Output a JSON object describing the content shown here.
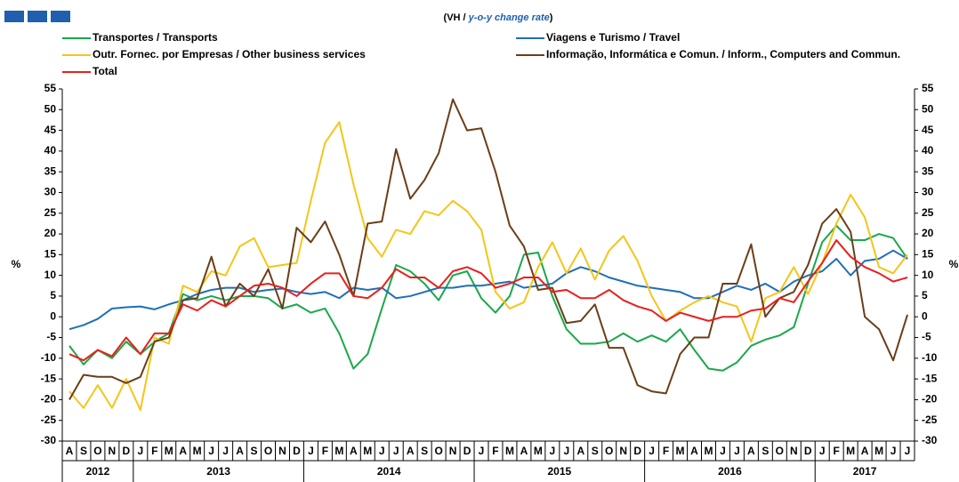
{
  "chart_data": {
    "type": "line",
    "subtitle": [
      "(VH / ",
      "y-o-y change rate",
      ")"
    ],
    "y_label": "%",
    "categories": [
      "A",
      "S",
      "O",
      "N",
      "D",
      "J",
      "F",
      "M",
      "A",
      "M",
      "J",
      "J",
      "A",
      "S",
      "O",
      "N",
      "D",
      "J",
      "F",
      "M",
      "A",
      "M",
      "J",
      "J",
      "A",
      "S",
      "O",
      "N",
      "D",
      "J",
      "F",
      "M",
      "A",
      "M",
      "J",
      "J",
      "A",
      "S",
      "O",
      "N",
      "D",
      "J",
      "F",
      "M",
      "A",
      "M",
      "J",
      "J",
      "A",
      "S",
      "O",
      "N",
      "D",
      "J",
      "F",
      "M",
      "A",
      "M",
      "J",
      "J"
    ],
    "years": [
      "2012",
      "2013",
      "2014",
      "2015",
      "2016",
      "2017"
    ],
    "ylim": [
      -30,
      55
    ],
    "yticks": [
      -30,
      -25,
      -20,
      -15,
      -10,
      -5,
      0,
      5,
      10,
      15,
      20,
      25,
      30,
      35,
      40,
      45,
      50,
      55
    ],
    "grid": false,
    "series": [
      {
        "name": "Transportes / Transports",
        "color": "#1aa84a",
        "values": [
          -7,
          -11.5,
          -8,
          -10,
          -6,
          -9,
          -6,
          -4,
          5.5,
          4,
          5,
          4,
          5,
          5,
          4.5,
          2,
          3,
          1,
          2,
          -4,
          -12.5,
          -9,
          2,
          12.5,
          11,
          8,
          4,
          10,
          11,
          4.5,
          1,
          5,
          15,
          15.5,
          5,
          -3,
          -6.5,
          -6.5,
          -6,
          -4,
          -6,
          -4.5,
          -6,
          -3,
          -8,
          -12.5,
          -13,
          -11,
          -7,
          -5.5,
          -4.5,
          -2.5,
          8,
          18,
          22,
          18.5,
          18.5,
          20,
          19,
          14
        ]
      },
      {
        "name": "Viagens e Turismo / Travel",
        "color": "#1f6fb6",
        "values": [
          -3,
          -2,
          -0.5,
          2,
          2.3,
          2.5,
          1.8,
          3,
          4,
          5.5,
          6.5,
          7,
          7,
          6,
          6.5,
          6.8,
          6,
          5.5,
          6,
          4.5,
          7,
          6.5,
          7,
          4.5,
          5,
          6,
          7,
          7,
          7.5,
          7.5,
          8,
          8.5,
          7,
          7.5,
          8,
          10.5,
          12,
          11,
          9.5,
          8.5,
          7.5,
          7,
          6.5,
          6,
          4.5,
          4.5,
          6,
          7.5,
          6.5,
          8,
          6,
          8.5,
          10,
          11,
          14,
          10,
          13.5,
          14,
          16,
          14
        ]
      },
      {
        "name": "Outr. Fornec. por Empresas / Other business services",
        "color": "#f5c518",
        "values": [
          -18,
          -22,
          -16.5,
          -22,
          -15,
          -22.5,
          -5,
          -6.5,
          7.5,
          6,
          11,
          10,
          17,
          19,
          12,
          12.5,
          13,
          28,
          42,
          47,
          32,
          19,
          14.5,
          21,
          20,
          25.5,
          24.5,
          28,
          25.5,
          21,
          6,
          2,
          3.5,
          12,
          18,
          10.5,
          16.5,
          9,
          16,
          19.5,
          13.5,
          5,
          -1,
          1.5,
          3.5,
          5,
          3.5,
          2.5,
          -6,
          4.5,
          6,
          12,
          5.5,
          13,
          22.5,
          29.5,
          24,
          12,
          10.5,
          15
        ]
      },
      {
        "name": "Informação, Informática e Comun. / Inform., Computers and Commun.",
        "color": "#6b3e17",
        "values": [
          -20,
          -14,
          -14.5,
          -14.5,
          -16,
          -14.5,
          -6,
          -5,
          4,
          4.5,
          14.5,
          2.5,
          8,
          5,
          11.5,
          2,
          21.5,
          18,
          23,
          15,
          5,
          22.5,
          23,
          40.5,
          28.5,
          33,
          39.5,
          52.5,
          45,
          45.5,
          35,
          22,
          17,
          6.5,
          7,
          -1.5,
          -1,
          3,
          -7.5,
          -7.5,
          -16.5,
          -18,
          -18.5,
          -9,
          -5,
          -5,
          8,
          8,
          17.5,
          0,
          4.5,
          6,
          12.5,
          22.5,
          26,
          20.5,
          0,
          -3,
          -10.5,
          0.5
        ]
      },
      {
        "name": "Total",
        "color": "#e8201c",
        "values": [
          -9,
          -10.5,
          -8,
          -9.5,
          -5,
          -9,
          -4,
          -4,
          3,
          1.5,
          4,
          2.5,
          5,
          7.5,
          8,
          7,
          5,
          8,
          10.5,
          10.5,
          5,
          4.5,
          7,
          11.5,
          9.5,
          9.5,
          7,
          11,
          12,
          10.5,
          7,
          8,
          9.5,
          9.5,
          6,
          6.5,
          4.5,
          4.5,
          6.5,
          4,
          2.5,
          1.5,
          -1,
          1,
          0,
          -1,
          0,
          0,
          1.5,
          2,
          4.5,
          3.5,
          8.5,
          13,
          18.5,
          14.5,
          12,
          10.5,
          8.5,
          9.5
        ]
      }
    ]
  }
}
